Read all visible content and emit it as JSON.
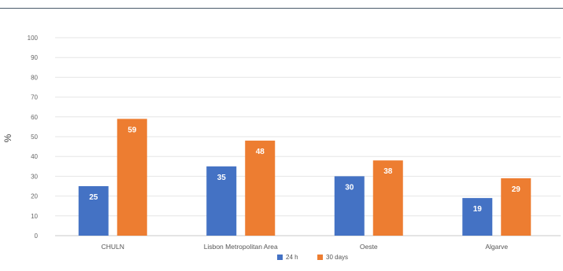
{
  "chart_data": {
    "type": "bar",
    "categories": [
      "CHULN",
      "Lisbon Metropolitan Area",
      "Oeste",
      "Algarve"
    ],
    "series": [
      {
        "name": "24 h",
        "values": [
          25,
          35,
          30,
          19
        ],
        "color": "#4472c4"
      },
      {
        "name": "30 days",
        "values": [
          59,
          48,
          38,
          29
        ],
        "color": "#ed7d31"
      }
    ],
    "ylabel": "%",
    "ylim": [
      0,
      100
    ],
    "yticks": [
      0,
      10,
      20,
      30,
      40,
      50,
      60,
      70,
      80,
      90,
      100
    ],
    "data_labels": true,
    "grid": true,
    "legend_position": "bottom"
  }
}
